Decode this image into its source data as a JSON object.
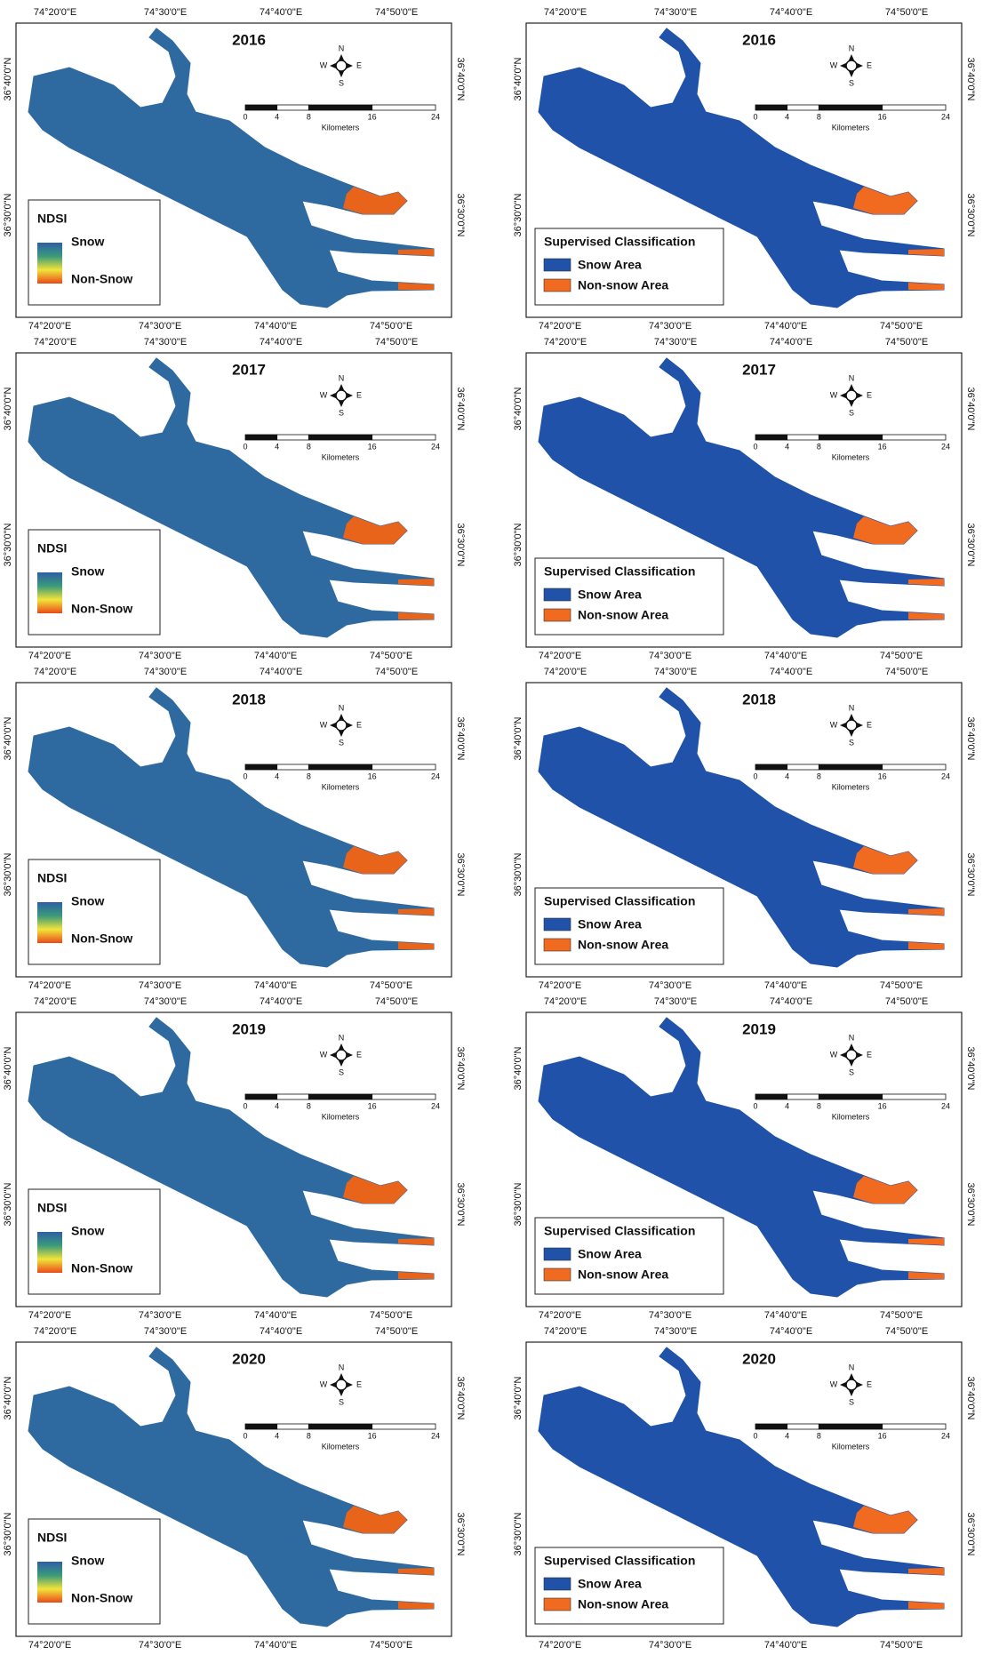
{
  "map_frame": {
    "lon_labels": [
      "74°20'0\"E",
      "74°30'0\"E",
      "74°40'0\"E",
      "74°50'0\"E"
    ],
    "lat_labels": [
      "36°40'0\"N",
      "36°30'0\"N"
    ],
    "scale_bar": {
      "ticks": [
        0,
        4,
        8,
        16,
        24
      ],
      "unit": "Kilometers"
    },
    "compass": {
      "n": "N",
      "s": "S",
      "e": "E",
      "w": "W"
    }
  },
  "panels": [
    {
      "year": "2016",
      "legend": {
        "title": "NDSI",
        "gradient": [
          "#2e5ea6",
          "#3a9a7a",
          "#f2e43a",
          "#e84a1a"
        ],
        "items": [
          {
            "label": "Snow",
            "color": "#2e6aa0"
          },
          {
            "label": "Non-Snow",
            "color": "#e8641a"
          }
        ]
      }
    },
    {
      "year": "2016",
      "legend": {
        "title": "Supervised Classification",
        "items": [
          {
            "label": "Snow Area",
            "color": "#1f52a8"
          },
          {
            "label": "Non-snow Area",
            "color": "#f06a20"
          }
        ]
      }
    },
    {
      "year": "2017",
      "legend": {
        "title": "NDSI",
        "gradient": [
          "#2e5ea6",
          "#3a9a7a",
          "#f2e43a",
          "#e84a1a"
        ],
        "items": [
          {
            "label": "Snow",
            "color": "#2e6aa0"
          },
          {
            "label": "Non-Snow",
            "color": "#e8641a"
          }
        ]
      }
    },
    {
      "year": "2017",
      "legend": {
        "title": "Supervised Classification",
        "items": [
          {
            "label": "Snow Area",
            "color": "#1f52a8"
          },
          {
            "label": "Non-snow Area",
            "color": "#f06a20"
          }
        ]
      }
    },
    {
      "year": "2018",
      "legend": {
        "title": "NDSI",
        "gradient": [
          "#2e5ea6",
          "#3a9a7a",
          "#f2e43a",
          "#e84a1a"
        ],
        "items": [
          {
            "label": "Snow",
            "color": "#2e6aa0"
          },
          {
            "label": "Non-Snow",
            "color": "#e8641a"
          }
        ]
      }
    },
    {
      "year": "2018",
      "legend": {
        "title": "Supervised Classification",
        "items": [
          {
            "label": "Snow Area",
            "color": "#1f52a8"
          },
          {
            "label": "Non-snow Area",
            "color": "#f06a20"
          }
        ]
      }
    },
    {
      "year": "2019",
      "legend": {
        "title": "NDSI",
        "gradient": [
          "#2e5ea6",
          "#3a9a7a",
          "#f2e43a",
          "#e84a1a"
        ],
        "items": [
          {
            "label": "Snow",
            "color": "#2e6aa0"
          },
          {
            "label": "Non-Snow",
            "color": "#e8641a"
          }
        ]
      }
    },
    {
      "year": "2019",
      "legend": {
        "title": "Supervised Classification",
        "items": [
          {
            "label": "Snow Area",
            "color": "#1f52a8"
          },
          {
            "label": "Non-snow Area",
            "color": "#f06a20"
          }
        ]
      }
    },
    {
      "year": "2020",
      "legend": {
        "title": "NDSI",
        "gradient": [
          "#2e5ea6",
          "#3a9a7a",
          "#f2e43a",
          "#e84a1a"
        ],
        "items": [
          {
            "label": "Snow",
            "color": "#2e6aa0"
          },
          {
            "label": "Non-Snow",
            "color": "#e8641a"
          }
        ]
      }
    },
    {
      "year": "2020",
      "legend": {
        "title": "Supervised Classification",
        "items": [
          {
            "label": "Snow Area",
            "color": "#1f52a8"
          },
          {
            "label": "Non-snow Area",
            "color": "#f06a20"
          }
        ]
      }
    }
  ]
}
